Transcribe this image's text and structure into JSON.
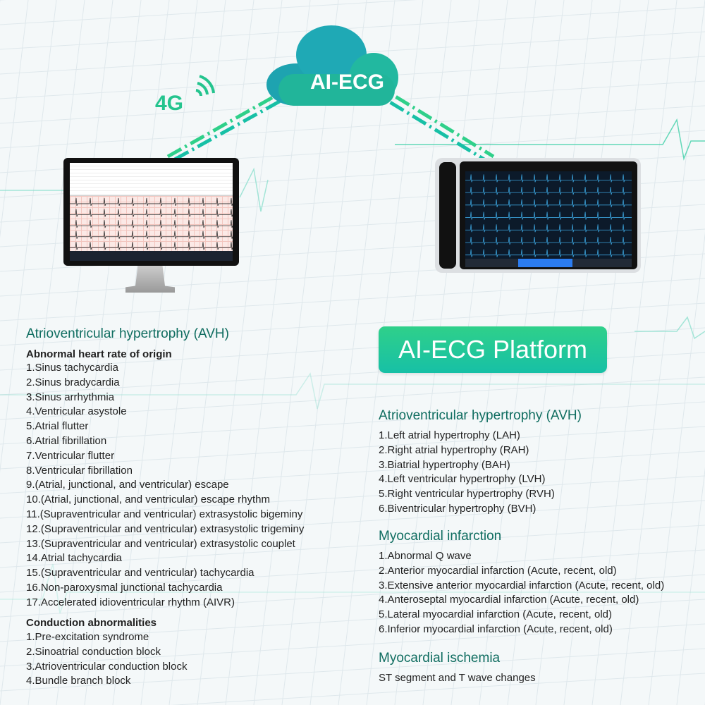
{
  "header": {
    "network_label": "4G",
    "cloud_label": "AI-ECG"
  },
  "platform_button": "AI-ECG Platform",
  "colors": {
    "heading": "#0f6d60",
    "accent_green": "#2fd08a",
    "accent_teal": "#17c0a6"
  },
  "left": {
    "title": "Atrioventricular hypertrophy (AVH)",
    "section1_title": "Abnormal heart rate of origin",
    "section1_items": [
      "1.Sinus tachycardia",
      "2.Sinus bradycardia",
      "3.Sinus arrhythmia",
      "4.Ventricular asystole",
      "5.Atrial flutter",
      "6.Atrial fibrillation",
      "7.Ventricular flutter",
      "8.Ventricular fibrillation",
      "9.(Atrial, junctional, and ventricular) escape",
      "10.(Atrial, junctional, and ventricular) escape rhythm",
      "11.(Supraventricular and ventricular) extrasystolic bigeminy",
      "12.(Supraventricular and ventricular) extrasystolic trigeminy",
      "13.(Supraventricular and ventricular) extrasystolic couplet",
      "14.Atrial tachycardia",
      "15.(Supraventricular and ventricular) tachycardia",
      "16.Non-paroxysmal junctional tachycardia",
      "17.Accelerated idioventricular rhythm (AIVR)"
    ],
    "section2_title": "Conduction abnormalities",
    "section2_items": [
      "1.Pre-excitation syndrome",
      "2.Sinoatrial conduction block",
      "3.Atrioventricular conduction block",
      "4.Bundle branch block"
    ]
  },
  "right": {
    "avh_title": "Atrioventricular hypertrophy (AVH)",
    "avh_items": [
      "1.Left atrial hypertrophy (LAH)",
      "2.Right atrial hypertrophy (RAH)",
      "3.Biatrial hypertrophy (BAH)",
      "4.Left ventricular hypertrophy (LVH)",
      "5.Right ventricular hypertrophy (RVH)",
      "6.Biventricular hypertrophy (BVH)"
    ],
    "mi_title": "Myocardial infarction",
    "mi_items": [
      "1.Abnormal Q wave",
      "2.Anterior myocardial infarction (Acute, recent, old)",
      "3.Extensive anterior myocardial infarction (Acute, recent, old)",
      "4.Anteroseptal myocardial infarction (Acute, recent, old)",
      "5.Lateral myocardial infarction (Acute, recent, old)",
      "6.Inferior myocardial infarction (Acute, recent, old)"
    ],
    "ischemia_title": "Myocardial ischemia",
    "ischemia_text": "ST segment and T wave changes"
  }
}
